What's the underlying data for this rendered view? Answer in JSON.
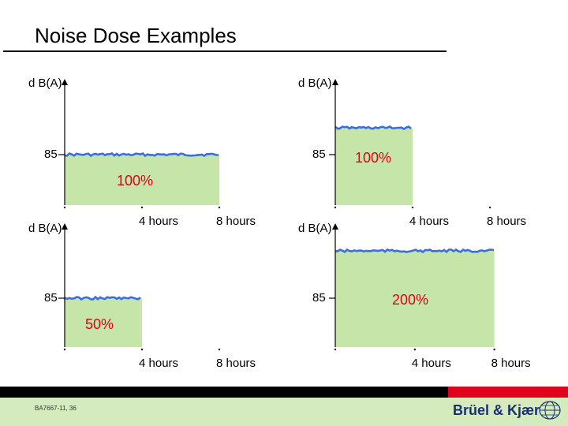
{
  "title": "Noise Dose Examples",
  "colors": {
    "fill": "#c6e6a9",
    "line": "#3a6ee0",
    "percent": "#e0001b"
  },
  "axis_labels": {
    "y": "d B(A)",
    "level": "85",
    "tick_4": "4 hours",
    "tick_8": "8 hours"
  },
  "chart_data": [
    {
      "type": "area",
      "y_label": "d B(A)",
      "level_label": "85",
      "x_ticks": [
        "4 hours",
        "8 hours"
      ],
      "level_db": 85,
      "exposure_hours": 8,
      "dose_label": "100%"
    },
    {
      "type": "area",
      "y_label": "d B(A)",
      "level_label": "85",
      "x_ticks": [
        "4 hours",
        "8 hours"
      ],
      "level_db": 88,
      "exposure_hours": 4,
      "dose_label": "100%"
    },
    {
      "type": "area",
      "y_label": "d B(A)",
      "level_label": "85",
      "x_ticks": [
        "4 hours",
        "8 hours"
      ],
      "level_db": 85,
      "exposure_hours": 4,
      "dose_label": "50%"
    },
    {
      "type": "area",
      "y_label": "d B(A)",
      "level_label": "85",
      "x_ticks": [
        "4 hours",
        "8 hours"
      ],
      "level_db": 88,
      "exposure_hours": 8,
      "dose_label": "200%"
    }
  ],
  "footer": {
    "doc_code": "BA7667-11, 36",
    "brand": "Brüel & Kjær"
  }
}
